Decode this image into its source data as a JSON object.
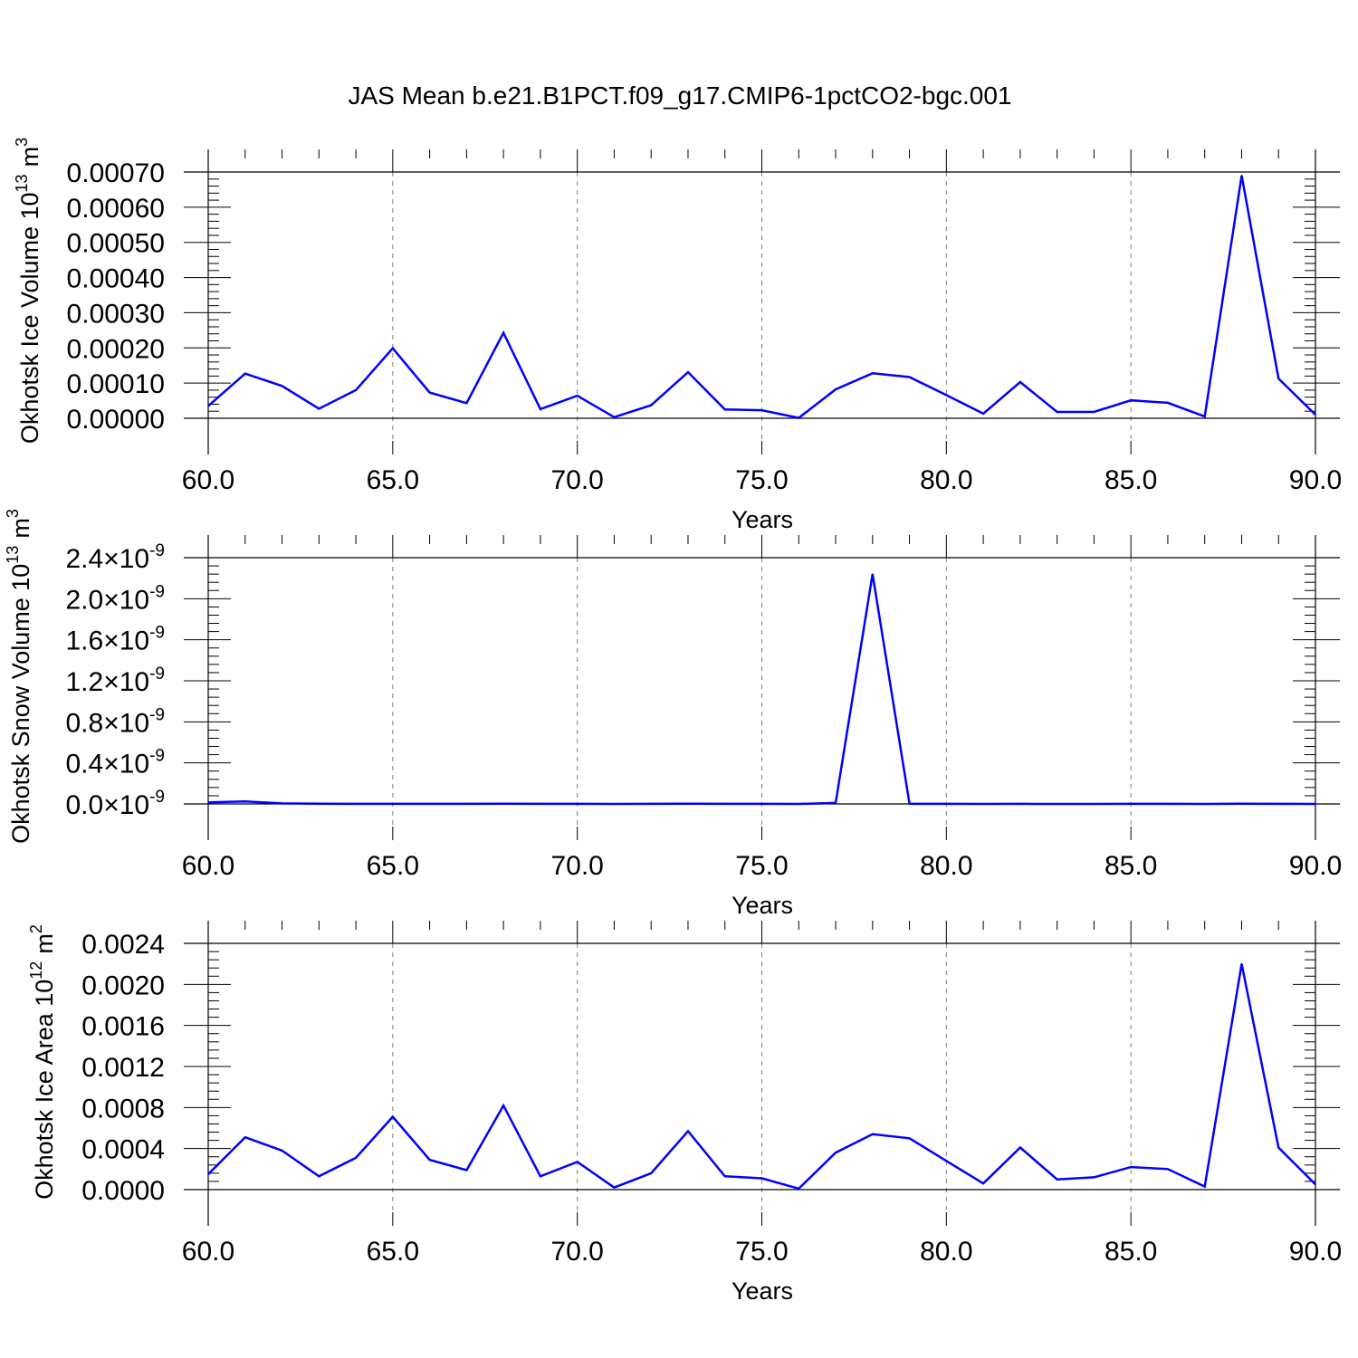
{
  "title": "JAS Mean b.e21.B1PCT.f09_g17.CMIP6-1pctCO2-bgc.001",
  "colors": {
    "line": "#0000ff",
    "axis": "#000000",
    "grid": "#808080",
    "background": "#ffffff"
  },
  "chart_data": [
    {
      "type": "line",
      "xlabel": "Years",
      "ylabel": "Okhotsk Ice Volume 10",
      "ylabel_exponent": "13",
      "ylabel_unit": "m",
      "ylabel_unit_exponent": "3",
      "xlim": [
        60,
        90
      ],
      "ylim": [
        0,
        0.0007
      ],
      "x_ticks": [
        "60.0",
        "65.0",
        "70.0",
        "75.0",
        "80.0",
        "85.0",
        "90.0"
      ],
      "y_ticks": [
        {
          "value": 0.0,
          "label": "0.00000"
        },
        {
          "value": 0.0001,
          "label": "0.00010"
        },
        {
          "value": 0.0002,
          "label": "0.00020"
        },
        {
          "value": 0.0003,
          "label": "0.00030"
        },
        {
          "value": 0.0004,
          "label": "0.00040"
        },
        {
          "value": 0.0005,
          "label": "0.00050"
        },
        {
          "value": 0.0006,
          "label": "0.00060"
        },
        {
          "value": 0.0007,
          "label": "0.00070"
        }
      ],
      "grid": "vertical dashed at major x ticks",
      "x": [
        60,
        61,
        62,
        63,
        64,
        65,
        66,
        67,
        68,
        69,
        70,
        71,
        72,
        73,
        74,
        75,
        76,
        77,
        78,
        79,
        80,
        81,
        82,
        83,
        84,
        85,
        86,
        87,
        88,
        89,
        90
      ],
      "values": [
        3.5e-05,
        0.000127,
        9.2e-05,
        2.7e-05,
        8e-05,
        0.000199,
        7.3e-05,
        4.3e-05,
        0.000243,
        2.6e-05,
        6.4e-05,
        3e-06,
        3.7e-05,
        0.000131,
        2.5e-05,
        2.3e-05,
        1e-06,
        8.2e-05,
        0.000128,
        0.000117,
        6.6e-05,
        1.3e-05,
        0.000103,
        1.8e-05,
        1.8e-05,
        5.1e-05,
        4.4e-05,
        5e-06,
        0.00069,
        0.000113,
        1e-05
      ]
    },
    {
      "type": "line",
      "xlabel": "Years",
      "ylabel": "Okhotsk Snow Volume 10",
      "ylabel_exponent": "13",
      "ylabel_unit": "m",
      "ylabel_unit_exponent": "3",
      "xlim": [
        60,
        90
      ],
      "ylim": [
        0,
        2.4e-09
      ],
      "x_ticks": [
        "60.0",
        "65.0",
        "70.0",
        "75.0",
        "80.0",
        "85.0",
        "90.0"
      ],
      "y_ticks": [
        {
          "value": 0.0,
          "mantissa": "0.0",
          "times": "×10",
          "exponent": "-9"
        },
        {
          "value": 4e-10,
          "mantissa": "0.4",
          "times": "×10",
          "exponent": "-9"
        },
        {
          "value": 8e-10,
          "mantissa": "0.8",
          "times": "×10",
          "exponent": "-9"
        },
        {
          "value": 1.2e-09,
          "mantissa": "1.2",
          "times": "×10",
          "exponent": "-9"
        },
        {
          "value": 1.6e-09,
          "mantissa": "1.6",
          "times": "×10",
          "exponent": "-9"
        },
        {
          "value": 2e-09,
          "mantissa": "2.0",
          "times": "×10",
          "exponent": "-9"
        },
        {
          "value": 2.4e-09,
          "mantissa": "2.4",
          "times": "×10",
          "exponent": "-9"
        }
      ],
      "grid": "vertical dashed at major x ticks",
      "x": [
        60,
        61,
        62,
        63,
        64,
        65,
        66,
        67,
        68,
        69,
        70,
        71,
        72,
        73,
        74,
        75,
        76,
        77,
        78,
        79,
        80,
        81,
        82,
        83,
        84,
        85,
        86,
        87,
        88,
        89,
        90
      ],
      "values": [
        1.5e-11,
        2.5e-11,
        5e-12,
        2e-12,
        1e-12,
        1e-12,
        1e-12,
        1e-12,
        2e-12,
        1e-12,
        1e-12,
        0,
        1e-12,
        3e-12,
        1e-12,
        1e-12,
        0,
        1e-11,
        2.24e-09,
        2e-12,
        1e-12,
        0,
        1e-12,
        0,
        0,
        1e-12,
        1e-12,
        0,
        3e-12,
        1e-12,
        0
      ]
    },
    {
      "type": "line",
      "xlabel": "Years",
      "ylabel": "Okhotsk Ice Area 10",
      "ylabel_exponent": "12",
      "ylabel_unit": "m",
      "ylabel_unit_exponent": "2",
      "xlim": [
        60,
        90
      ],
      "ylim": [
        0,
        0.0024
      ],
      "x_ticks": [
        "60.0",
        "65.0",
        "70.0",
        "75.0",
        "80.0",
        "85.0",
        "90.0"
      ],
      "y_ticks": [
        {
          "value": 0.0,
          "label": "0.0000"
        },
        {
          "value": 0.0004,
          "label": "0.0004"
        },
        {
          "value": 0.0008,
          "label": "0.0008"
        },
        {
          "value": 0.0012,
          "label": "0.0012"
        },
        {
          "value": 0.0016,
          "label": "0.0016"
        },
        {
          "value": 0.002,
          "label": "0.0020"
        },
        {
          "value": 0.0024,
          "label": "0.0024"
        }
      ],
      "grid": "vertical dashed at major x ticks",
      "x": [
        60,
        61,
        62,
        63,
        64,
        65,
        66,
        67,
        68,
        69,
        70,
        71,
        72,
        73,
        74,
        75,
        76,
        77,
        78,
        79,
        80,
        81,
        82,
        83,
        84,
        85,
        86,
        87,
        88,
        89,
        90
      ],
      "values": [
        0.00015,
        0.00051,
        0.00038,
        0.00013,
        0.00031,
        0.00071,
        0.00029,
        0.00019,
        0.00082,
        0.00013,
        0.00027,
        2e-05,
        0.00016,
        0.00057,
        0.00013,
        0.00011,
        1e-05,
        0.00036,
        0.00054,
        0.0005,
        0.00028,
        6e-05,
        0.00041,
        0.0001,
        0.00012,
        0.00022,
        0.0002,
        3e-05,
        0.0022,
        0.00041,
        5e-05
      ]
    }
  ]
}
